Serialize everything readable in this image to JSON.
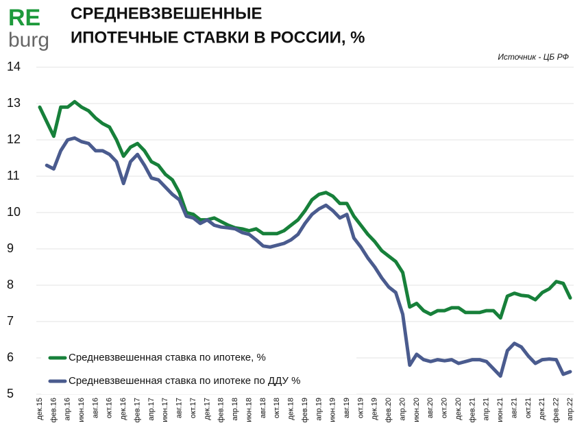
{
  "chart_data": {
    "type": "line",
    "logo": [
      "RE",
      "burg"
    ],
    "title": [
      "СРЕДНЕВЗВЕШЕННЫЕ",
      "ИПОТЕЧНЫЕ СТАВКИ В РОССИИ, %"
    ],
    "source": "Источник  - ЦБ РФ",
    "categories": [
      "дек.15",
      null,
      "фев.16",
      null,
      "апр.16",
      null,
      "июн.16",
      null,
      "авг.16",
      null,
      "окт.16",
      null,
      "дек.16",
      null,
      "фев.17",
      null,
      "апр.17",
      null,
      "июн.17",
      null,
      "авг.17",
      null,
      "окт.17",
      null,
      "дек.17",
      null,
      "фев.18",
      null,
      "апр.18",
      null,
      "июн.18",
      null,
      "авг.18",
      null,
      "окт.18",
      null,
      "дек.18",
      null,
      "фев.19",
      null,
      "апр.19",
      null,
      "июн.19",
      null,
      "авг.19",
      null,
      "окт.19",
      null,
      "дек.19",
      null,
      "фев.20",
      null,
      "апр.20",
      null,
      "июн.20",
      null,
      "авг.20",
      null,
      "окт.20",
      null,
      "дек.20",
      null,
      "фев.21",
      null,
      "апр.21",
      null,
      "июн.21",
      null,
      "авг.21",
      null,
      "окт.21",
      null,
      "дек.21",
      null,
      "фев.22",
      null,
      "апр.22"
    ],
    "series": [
      {
        "name": "Средневзвешенная ставка по ипотеке, %",
        "color": "#17803a",
        "values": [
          12.9,
          12.5,
          12.1,
          12.9,
          12.9,
          13.05,
          12.9,
          12.8,
          12.6,
          12.45,
          12.35,
          12.0,
          11.55,
          11.8,
          11.9,
          11.7,
          11.4,
          11.3,
          11.05,
          10.9,
          10.55,
          10.0,
          9.95,
          9.8,
          9.8,
          9.85,
          9.75,
          9.65,
          9.58,
          9.55,
          9.5,
          9.55,
          9.42,
          9.42,
          9.42,
          9.5,
          9.65,
          9.8,
          10.05,
          10.35,
          10.5,
          10.55,
          10.45,
          10.25,
          10.25,
          9.9,
          9.65,
          9.4,
          9.2,
          8.95,
          8.8,
          8.65,
          8.35,
          7.4,
          7.5,
          7.3,
          7.2,
          7.3,
          7.3,
          7.38,
          7.38,
          7.25,
          7.25,
          7.25,
          7.3,
          7.3,
          7.1,
          7.7,
          7.78,
          7.72,
          7.7,
          7.6,
          7.8,
          7.9,
          8.1,
          8.05,
          7.65
        ]
      },
      {
        "name": "Средневзвешенная ставка по ипотеке по ДДУ %",
        "color": "#4a5b8e",
        "values": [
          null,
          11.3,
          11.2,
          11.7,
          12.0,
          12.05,
          11.95,
          11.9,
          11.7,
          11.7,
          11.6,
          11.4,
          10.8,
          11.4,
          11.6,
          11.3,
          10.95,
          10.9,
          10.7,
          10.5,
          10.35,
          9.9,
          9.85,
          9.7,
          9.8,
          9.65,
          9.6,
          9.58,
          9.55,
          9.45,
          9.4,
          9.25,
          9.08,
          9.05,
          9.1,
          9.15,
          9.25,
          9.4,
          9.7,
          9.95,
          10.1,
          10.2,
          10.05,
          9.85,
          9.95,
          9.3,
          9.05,
          8.75,
          8.5,
          8.2,
          7.95,
          7.8,
          7.2,
          5.8,
          6.1,
          5.95,
          5.9,
          5.95,
          5.92,
          5.95,
          5.85,
          5.9,
          5.95,
          5.95,
          5.9,
          5.7,
          5.5,
          6.2,
          6.4,
          6.3,
          6.05,
          5.85,
          5.95,
          5.97,
          5.95,
          5.55,
          5.62
        ]
      }
    ],
    "ylim": [
      5,
      14
    ],
    "yticks": [
      5,
      6,
      7,
      8,
      9,
      10,
      11,
      12,
      13,
      14
    ],
    "grid": true
  }
}
